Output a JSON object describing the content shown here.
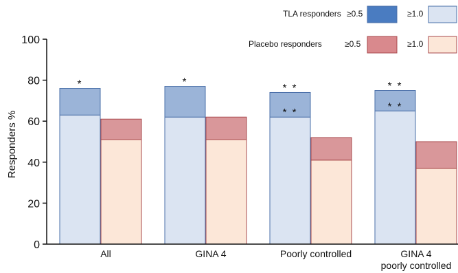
{
  "chart_data": {
    "type": "bar",
    "ylabel": "Responders  %",
    "ylim": [
      0,
      100
    ],
    "yticks": [
      0,
      20,
      40,
      60,
      80,
      100
    ],
    "categories": [
      "All",
      "GINA 4",
      "Poorly controlled",
      "GINA 4 poorly controlled"
    ],
    "category_label_lines": [
      [
        "All"
      ],
      [
        "GINA 4"
      ],
      [
        "Poorly controlled"
      ],
      [
        "GINA 4",
        "poorly controlled"
      ]
    ],
    "legend": {
      "tla_label": "TLA  responders",
      "placebo_label": "Placebo  responders",
      "threshold_a": "≥0.5",
      "threshold_b": "≥1.0"
    },
    "series": [
      {
        "name": "TLA responders ≥0.5",
        "group": "TLA",
        "values": [
          76,
          77,
          74,
          75
        ]
      },
      {
        "name": "TLA responders ≥1.0",
        "group": "TLA",
        "values": [
          63,
          62,
          62,
          65
        ]
      },
      {
        "name": "Placebo responders ≥0.5",
        "group": "Placebo",
        "values": [
          61,
          62,
          52,
          50
        ]
      },
      {
        "name": "Placebo responders ≥1.0",
        "group": "Placebo",
        "values": [
          51,
          51,
          41,
          37
        ]
      }
    ],
    "annotations": {
      "tla_top": [
        "*",
        "*",
        "* *",
        "* *"
      ],
      "tla_inner": [
        "",
        "",
        "* *",
        "* *"
      ]
    },
    "colors": {
      "tla_top": "#9bb4d8",
      "tla_bottom": "#dbe4f2",
      "tla_edge": "#4a6fa8",
      "tla_legend_top": "#4a7cc1",
      "placebo_top": "#d9979a",
      "placebo_bottom": "#fce7d8",
      "placebo_edge": "#a8484c",
      "placebo_legend_top": "#d9898d"
    }
  }
}
